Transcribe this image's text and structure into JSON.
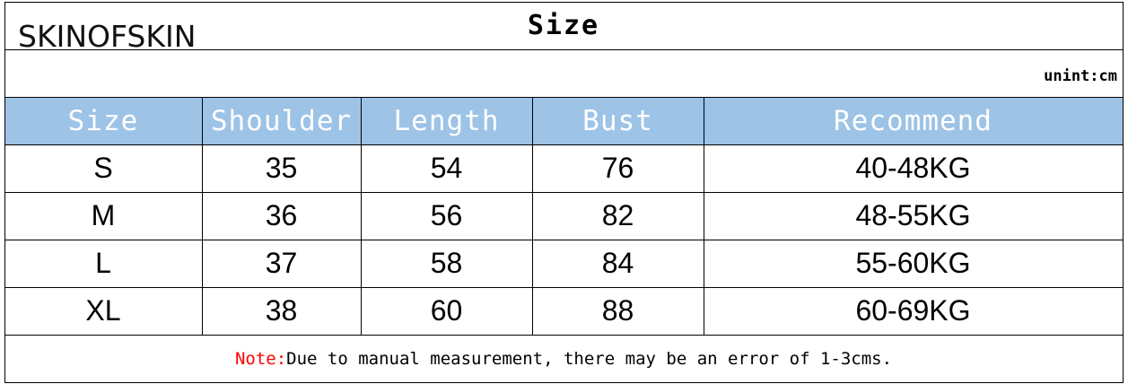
{
  "brand": "SKINOFSKIN",
  "title": "Size",
  "unit": "unint:cm",
  "headers": [
    "Size",
    "Shoulder",
    "Length",
    "Bust",
    "Recommend"
  ],
  "rows": [
    [
      "S",
      "35",
      "54",
      "76",
      "40-48KG"
    ],
    [
      "M",
      "36",
      "56",
      "82",
      "48-55KG"
    ],
    [
      "L",
      "37",
      "58",
      "84",
      "55-60KG"
    ],
    [
      "XL",
      "38",
      "60",
      "88",
      "60-69KG"
    ]
  ],
  "note": {
    "label": "Note:",
    "text": "Due to manual measurement, there may be an error of 1-3cms."
  },
  "colors": {
    "header_bg": "#9dc3e6",
    "note_label": "#ff0000"
  }
}
